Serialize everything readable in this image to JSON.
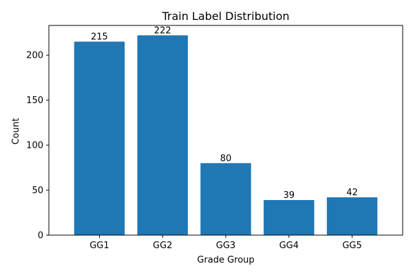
{
  "chart_data": {
    "type": "bar",
    "title": "Train Label Distribution",
    "xlabel": "Grade Group",
    "ylabel": "Count",
    "categories": [
      "GG1",
      "GG2",
      "GG3",
      "GG4",
      "GG5"
    ],
    "values": [
      215,
      222,
      80,
      39,
      42
    ],
    "ylim": [
      0,
      233
    ],
    "yticks": [
      0,
      50,
      100,
      150,
      200
    ],
    "grid": false,
    "bar_color": "#1f77b4"
  }
}
